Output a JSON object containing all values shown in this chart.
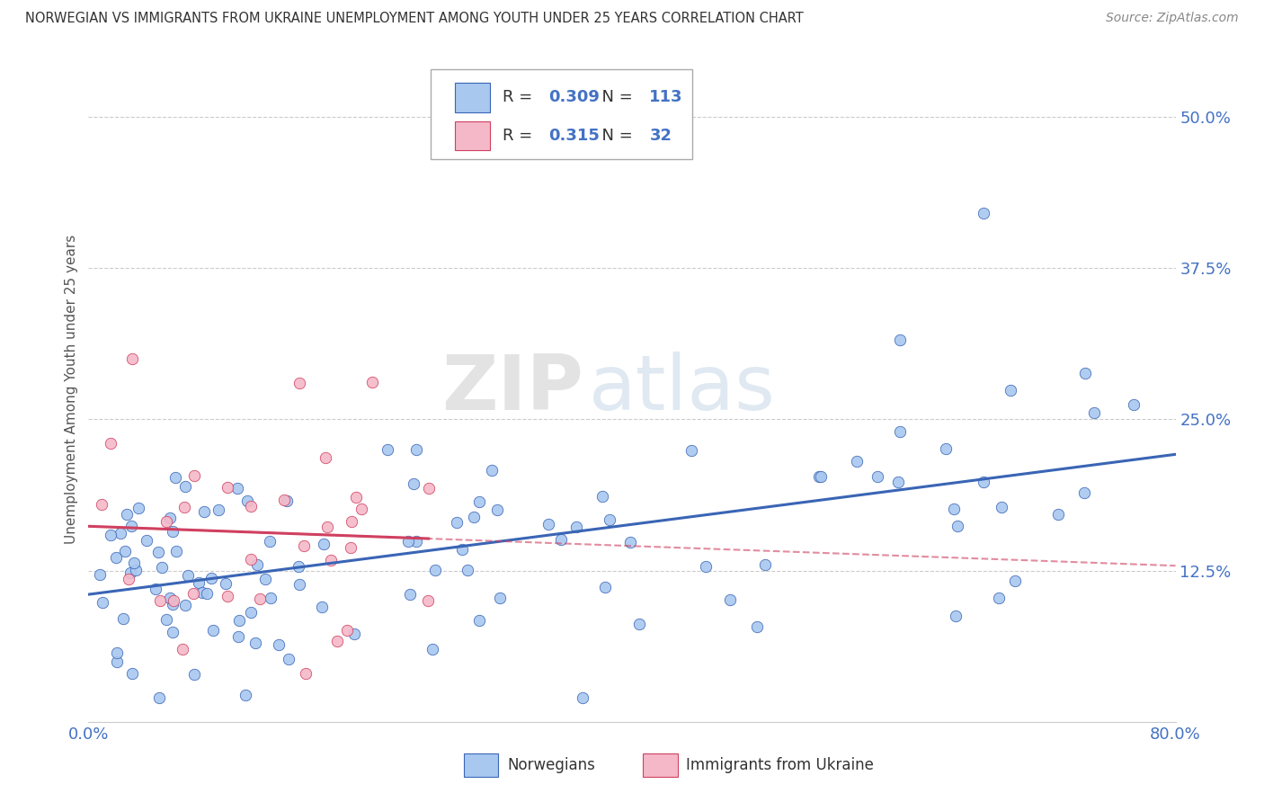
{
  "title": "NORWEGIAN VS IMMIGRANTS FROM UKRAINE UNEMPLOYMENT AMONG YOUTH UNDER 25 YEARS CORRELATION CHART",
  "source": "Source: ZipAtlas.com",
  "ylabel": "Unemployment Among Youth under 25 years",
  "xlim": [
    0.0,
    0.8
  ],
  "ylim": [
    0.0,
    0.55
  ],
  "ytick_positions": [
    0.0,
    0.125,
    0.25,
    0.375,
    0.5
  ],
  "ytick_labels": [
    "",
    "12.5%",
    "25.0%",
    "37.5%",
    "50.0%"
  ],
  "grid_color": "#cccccc",
  "background_color": "#ffffff",
  "norwegians_color": "#a8c8f0",
  "ukraine_color": "#f4b8c8",
  "trend_norwegian_color": "#3a65b5",
  "trend_ukraine_color": "#d04060",
  "legend_color_blue": "#4472c4",
  "legend_R_norwegian": "0.309",
  "legend_N_norwegian": "113",
  "legend_R_ukraine": "0.315",
  "legend_N_ukraine": "32",
  "nor_seed": 2023,
  "ukr_seed": 2024
}
